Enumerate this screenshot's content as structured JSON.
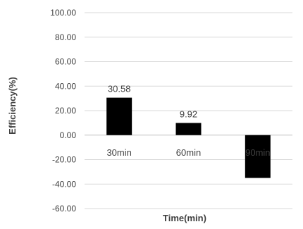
{
  "chart_data": {
    "type": "bar",
    "categories": [
      "30min",
      "60min",
      "90min"
    ],
    "values": [
      30.58,
      9.92,
      -35.0
    ],
    "data_labels": [
      "30.58",
      "9.92",
      ""
    ],
    "xlabel": "Time(min)",
    "ylabel": "Efficiency(%)",
    "ylim": [
      -60,
      100
    ],
    "yticks": [
      "100.00",
      "80.00",
      "60.00",
      "40.00",
      "20.00",
      "0.00",
      "-20.00",
      "-40.00",
      "-60.00"
    ],
    "grid": true,
    "legend": "none",
    "bar_color": "#000000"
  }
}
